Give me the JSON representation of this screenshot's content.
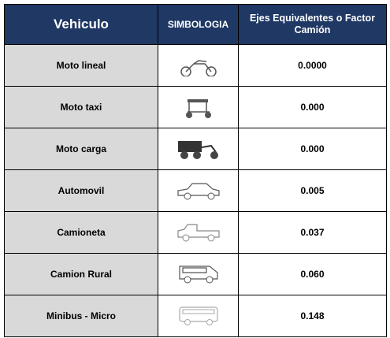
{
  "table": {
    "header": [
      "Vehiculo",
      "SIMBOLOGIA",
      "Ejes Equivalentes o Factor Camión"
    ],
    "rows": [
      [
        "Moto lineal",
        "0.0000"
      ],
      [
        "Moto taxi",
        "0.000"
      ],
      [
        "Moto carga",
        "0.000"
      ],
      [
        "Automovil",
        "0.005"
      ],
      [
        "Camioneta",
        "0.037"
      ],
      [
        "Camion Rural",
        "0.060"
      ],
      [
        "Minibus - Micro",
        "0.148"
      ]
    ]
  }
}
